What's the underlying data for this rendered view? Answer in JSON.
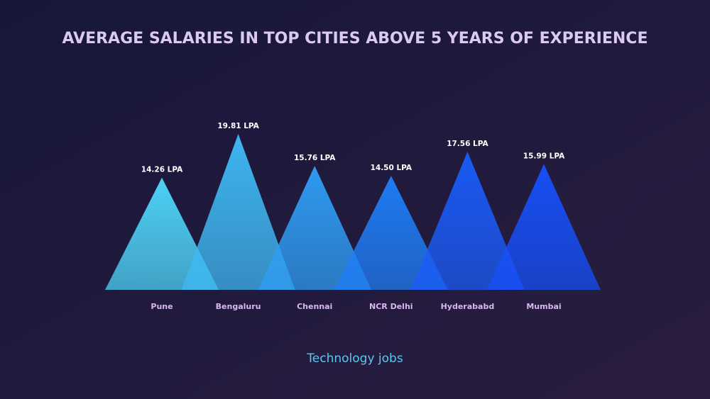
{
  "chart_data": {
    "type": "triangle",
    "title": "AVERAGE SALARIES IN TOP CITIES ABOVE 5 YEARS OF EXPERIENCE",
    "subtitle": "Technology jobs",
    "categories": [
      "Pune",
      "Bengaluru",
      "Chennai",
      "NCR Delhi",
      "Hyderababd",
      "Mumbai"
    ],
    "values": [
      14.26,
      19.81,
      15.76,
      14.5,
      17.56,
      15.99
    ],
    "value_labels": [
      "14.26 LPA",
      "19.81 LPA",
      "15.76 LPA",
      "14.50 LPA",
      "17.56 LPA",
      "15.99 LPA"
    ],
    "colors": [
      "#4fd6fb",
      "#3fbaf5",
      "#2f9ef6",
      "#1f7ef8",
      "#1a5cfa",
      "#1650fb"
    ]
  }
}
